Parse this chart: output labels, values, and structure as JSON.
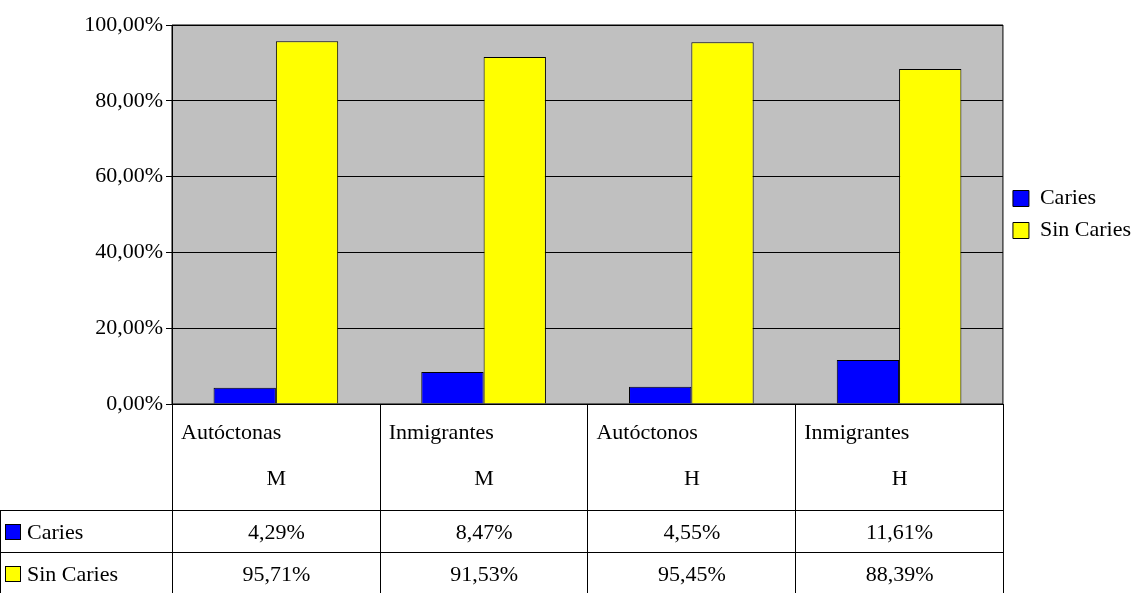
{
  "chart_data": {
    "type": "bar",
    "categories": [
      "Autóctonas\nM",
      "Inmigrantes\nM",
      "Autóctonos\nH",
      "Inmigrantes\nH"
    ],
    "series": [
      {
        "name": "Caries",
        "color": "#0000ff",
        "values": [
          4.29,
          8.47,
          4.55,
          11.61
        ],
        "value_labels": [
          "4,29%",
          "8,47%",
          "4,55%",
          "11,61%"
        ]
      },
      {
        "name": "Sin Caries",
        "color": "#ffff00",
        "values": [
          95.71,
          91.53,
          95.45,
          88.39
        ],
        "value_labels": [
          "95,71%",
          "91,53%",
          "95,45%",
          "88,39%"
        ]
      }
    ],
    "ylim": [
      0,
      100
    ],
    "yticks": [
      {
        "value": 0,
        "label": "0,00%"
      },
      {
        "value": 20,
        "label": "20,00%"
      },
      {
        "value": 40,
        "label": "40,00%"
      },
      {
        "value": 60,
        "label": "60,00%"
      },
      {
        "value": 80,
        "label": "80,00%"
      },
      {
        "value": 100,
        "label": "100,00%"
      }
    ],
    "grid": "y",
    "legend": "right"
  }
}
